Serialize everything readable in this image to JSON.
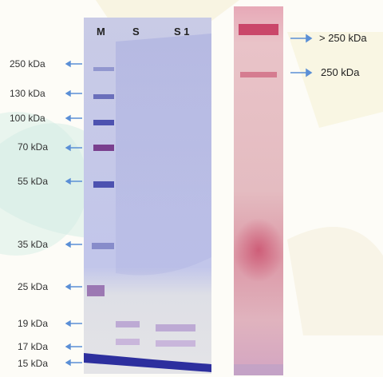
{
  "gel_left": {
    "lane_headers": [
      "M",
      "S",
      "S 1"
    ],
    "markers": [
      "250 kDa",
      "130 kDa",
      "100 kDa",
      "70 kDa",
      "55 kDa",
      "35 kDa",
      "25 kDa",
      "19 kDa",
      "17 kDa",
      "15 kDa"
    ]
  },
  "gel_right": {
    "annotations": [
      "> 250 kDa",
      "250 kDa"
    ]
  },
  "colors": {
    "coomassie_blue": "#3a3fa8",
    "pink_stain": "#c4325a",
    "arrow_blue": "#5b8fd6"
  }
}
